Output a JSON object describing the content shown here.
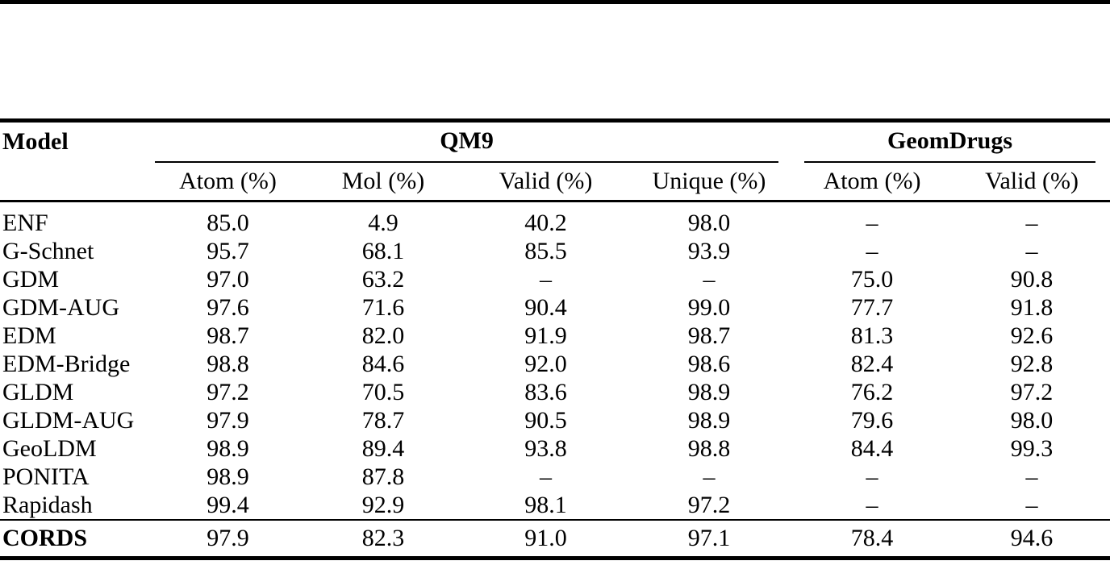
{
  "table": {
    "model_header": "Model",
    "groups": [
      {
        "label": "QM9",
        "columns": [
          "Atom (%)",
          "Mol (%)",
          "Valid (%)",
          "Unique (%)"
        ]
      },
      {
        "label": "GeomDrugs",
        "columns": [
          "Atom (%)",
          "Valid (%)"
        ]
      }
    ],
    "missing_value_symbol": "–",
    "rows": [
      {
        "model": "ENF",
        "values": [
          "85.0",
          "4.9",
          "40.2",
          "98.0",
          "–",
          "–"
        ]
      },
      {
        "model": "G-Schnet",
        "values": [
          "95.7",
          "68.1",
          "85.5",
          "93.9",
          "–",
          "–"
        ]
      },
      {
        "model": "GDM",
        "values": [
          "97.0",
          "63.2",
          "–",
          "–",
          "75.0",
          "90.8"
        ]
      },
      {
        "model": "GDM-AUG",
        "values": [
          "97.6",
          "71.6",
          "90.4",
          "99.0",
          "77.7",
          "91.8"
        ]
      },
      {
        "model": "EDM",
        "values": [
          "98.7",
          "82.0",
          "91.9",
          "98.7",
          "81.3",
          "92.6"
        ]
      },
      {
        "model": "EDM-Bridge",
        "values": [
          "98.8",
          "84.6",
          "92.0",
          "98.6",
          "82.4",
          "92.8"
        ]
      },
      {
        "model": "GLDM",
        "values": [
          "97.2",
          "70.5",
          "83.6",
          "98.9",
          "76.2",
          "97.2"
        ]
      },
      {
        "model": "GLDM-AUG",
        "values": [
          "97.9",
          "78.7",
          "90.5",
          "98.9",
          "79.6",
          "98.0"
        ]
      },
      {
        "model": "GeoLDM",
        "values": [
          "98.9",
          "89.4",
          "93.8",
          "98.8",
          "84.4",
          "99.3"
        ]
      },
      {
        "model": "PONITA",
        "values": [
          "98.9",
          "87.8",
          "–",
          "–",
          "–",
          "–"
        ]
      },
      {
        "model": "Rapidash",
        "values": [
          "99.4",
          "92.9",
          "98.1",
          "97.2",
          "–",
          "–"
        ]
      }
    ],
    "summary_row": {
      "model": "CORDS",
      "values": [
        "97.9",
        "82.3",
        "91.0",
        "97.1",
        "78.4",
        "94.6"
      ]
    }
  },
  "colors": {
    "rule": "#000000",
    "background": "#ffffff",
    "text": "#000000"
  }
}
